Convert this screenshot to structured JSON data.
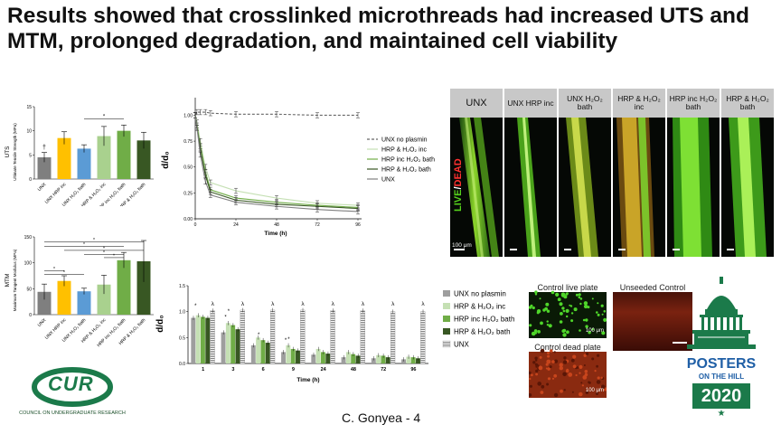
{
  "title": "Results showed that crosslinked microthreads had increased UTS and MTM, prolonged degradation, and maintained cell viability",
  "uts_chart": {
    "ylabel": "UTS",
    "ylabel2": "Ultimate Tensile Strength (MPa)",
    "yticks": [
      "15",
      "10",
      "5",
      "0"
    ],
    "categories": [
      "UNX",
      "UNX HRP inc",
      "UNX H₂O₂ bath",
      "HRP & H₂O₂ inc",
      "HRP inc H₂O₂ bath",
      "HRP & H₂O₂ bath"
    ],
    "values": [
      4.5,
      8.5,
      6.3,
      8.9,
      10,
      8
    ],
    "errors": [
      1,
      1.3,
      0.8,
      2,
      1.2,
      1.7
    ],
    "colors": [
      "#7f7f7f",
      "#ffc000",
      "#5b9bd5",
      "#a9d18e",
      "#70ad47",
      "#385723"
    ],
    "dagger": "†",
    "star": "*"
  },
  "mtm_chart": {
    "ylabel": "MTM",
    "ylabel2": "Maximum Tangent Modulus (MPa)",
    "yticks": [
      "150",
      "100",
      "50",
      "0"
    ],
    "categories": [
      "UNX",
      "UNX HRP inc",
      "UNX H₂O₂ bath",
      "HRP & H₂O₂ inc",
      "HRP inc H₂O₂ bath",
      "HRP & H₂O₂ bath"
    ],
    "values": [
      44,
      65,
      45,
      58,
      105,
      103
    ],
    "errors": [
      15,
      10,
      6,
      18,
      15,
      40
    ],
    "colors": [
      "#7f7f7f",
      "#ffc000",
      "#5b9bd5",
      "#a9d18e",
      "#70ad47",
      "#385723"
    ],
    "star": "*"
  },
  "degradation_line": {
    "ylabel": "d/d₀",
    "xlabel": "Time (h)",
    "yticks": [
      "1.00",
      "0.75",
      "0.50",
      "0.25",
      "0.00"
    ],
    "xticks": [
      "0",
      "24",
      "48",
      "72",
      "96"
    ],
    "x": [
      0,
      1,
      3,
      6,
      9,
      24,
      48,
      72,
      96
    ],
    "series": [
      {
        "name": "UNX no plasmin",
        "color": "#666666",
        "dash": true,
        "values": [
          1.0,
          1.03,
          1.03,
          1.03,
          1.02,
          1.01,
          1.01,
          1.0,
          1.0
        ]
      },
      {
        "name": "HRP & H₂O₂ inc",
        "color": "#c5e0b4",
        "dash": false,
        "values": [
          1.0,
          0.93,
          0.75,
          0.5,
          0.35,
          0.27,
          0.2,
          0.15,
          0.13
        ]
      },
      {
        "name": "HRP inc H₂O₂ bath",
        "color": "#70ad47",
        "dash": false,
        "values": [
          1.0,
          0.9,
          0.7,
          0.45,
          0.28,
          0.2,
          0.16,
          0.13,
          0.11
        ]
      },
      {
        "name": "HRP & H₂O₂ bath",
        "color": "#385723",
        "dash": false,
        "values": [
          1.0,
          0.88,
          0.68,
          0.42,
          0.26,
          0.18,
          0.14,
          0.12,
          0.1
        ]
      },
      {
        "name": "UNX",
        "color": "#808080",
        "dash": false,
        "values": [
          1.0,
          0.88,
          0.62,
          0.36,
          0.23,
          0.16,
          0.12,
          0.09,
          0.07
        ]
      }
    ]
  },
  "degradation_bar": {
    "ylabel": "d/d₀",
    "xlabel": "Time (h)",
    "yticks": [
      "1.5",
      "1.0",
      "0.5",
      "0.0"
    ],
    "categories": [
      "1",
      "3",
      "6",
      "9",
      "24",
      "48",
      "72",
      "96"
    ],
    "series": [
      {
        "name": "UNX no plasmin",
        "color": "#9e9e9e",
        "hatch": false,
        "values": [
          0.88,
          0.6,
          0.35,
          0.22,
          0.17,
          0.12,
          0.1,
          0.08
        ]
      },
      {
        "name": "HRP & H₂O₂ inc",
        "color": "#c5e0b4",
        "hatch": false,
        "values": [
          0.93,
          0.78,
          0.5,
          0.35,
          0.28,
          0.22,
          0.16,
          0.13
        ]
      },
      {
        "name": "HRP inc H₂O₂ bath",
        "color": "#70ad47",
        "hatch": false,
        "values": [
          0.9,
          0.74,
          0.45,
          0.28,
          0.22,
          0.18,
          0.15,
          0.12
        ]
      },
      {
        "name": "HRP & H₂O₂ bath",
        "color": "#385723",
        "hatch": false,
        "values": [
          0.88,
          0.66,
          0.4,
          0.25,
          0.19,
          0.15,
          0.12,
          0.1
        ]
      },
      {
        "name": "UNX",
        "color": "#7f7f7f",
        "hatch": true,
        "values": [
          1.02,
          1.03,
          1.03,
          1.03,
          1.02,
          1.02,
          1.0,
          1.0
        ]
      }
    ],
    "lambda": "λ",
    "star": "*"
  },
  "microscopy": {
    "panels": [
      "UNX",
      "UNX HRP inc",
      "UNX H₂O₂ bath",
      "HRP & H₂O₂ inc",
      "HRP inc H₂O₂ bath",
      "HRP & H₂O₂ bath"
    ],
    "live_label": "LIVE",
    "dead_label": "DEAD",
    "slash": "/",
    "scale": "100 μm"
  },
  "controls": {
    "live_plate": "Control live plate",
    "dead_plate": "Control dead plate",
    "unseeded": "Unseeded Control",
    "scale": "100 μm"
  },
  "cur_logo": {
    "text": "CUR",
    "tm": "™",
    "caption": "COUNCIL ON UNDERGRADUATE RESEARCH"
  },
  "poster_logo": {
    "line1": "POSTERS",
    "line2": "ON THE HILL",
    "year": "2020",
    "star": "★"
  },
  "credit": "C. Gonyea  - 4",
  "colors": {
    "dark_green": "#1f6b3a",
    "logo_green": "#1b7a4a",
    "cur_blue": "#1f5fa6"
  }
}
